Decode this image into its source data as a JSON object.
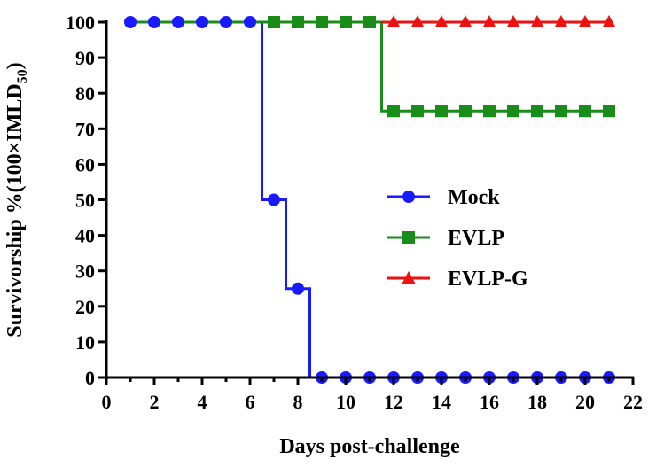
{
  "chart_data": {
    "type": "line",
    "step": true,
    "xlabel": "Days post-challenge",
    "ylabel": "Survivorship %(100×IMLD",
    "ylabel_subscript": "50",
    "ylabel_close": ")",
    "xlim": [
      0,
      22
    ],
    "ylim": [
      0,
      100
    ],
    "x_ticks": [
      0,
      2,
      4,
      6,
      8,
      10,
      12,
      14,
      16,
      18,
      20,
      22
    ],
    "y_ticks": [
      0,
      10,
      20,
      30,
      40,
      50,
      60,
      70,
      80,
      90,
      100
    ],
    "grid": false,
    "legend_position": "right",
    "series": [
      {
        "name": "Mock",
        "color": "#1a1aff",
        "marker": "circle",
        "steps": [
          [
            1,
            100
          ],
          [
            6.5,
            100
          ],
          [
            6.5,
            50
          ],
          [
            7.5,
            50
          ],
          [
            7.5,
            25
          ],
          [
            8.5,
            25
          ],
          [
            8.5,
            0
          ],
          [
            21,
            0
          ]
        ],
        "points": [
          [
            1,
            100
          ],
          [
            2,
            100
          ],
          [
            3,
            100
          ],
          [
            4,
            100
          ],
          [
            5,
            100
          ],
          [
            6,
            100
          ],
          [
            7,
            50
          ],
          [
            8,
            25
          ],
          [
            9,
            0
          ],
          [
            10,
            0
          ],
          [
            11,
            0
          ],
          [
            12,
            0
          ],
          [
            13,
            0
          ],
          [
            14,
            0
          ],
          [
            15,
            0
          ],
          [
            16,
            0
          ],
          [
            17,
            0
          ],
          [
            18,
            0
          ],
          [
            19,
            0
          ],
          [
            20,
            0
          ],
          [
            21,
            0
          ]
        ]
      },
      {
        "name": "EVLP",
        "color": "#1a8c1a",
        "marker": "square",
        "steps": [
          [
            1,
            100
          ],
          [
            11.5,
            100
          ],
          [
            11.5,
            75
          ],
          [
            21,
            75
          ]
        ],
        "points": [
          [
            7,
            100
          ],
          [
            8,
            100
          ],
          [
            9,
            100
          ],
          [
            10,
            100
          ],
          [
            11,
            100
          ],
          [
            12,
            75
          ],
          [
            13,
            75
          ],
          [
            14,
            75
          ],
          [
            15,
            75
          ],
          [
            16,
            75
          ],
          [
            17,
            75
          ],
          [
            18,
            75
          ],
          [
            19,
            75
          ],
          [
            20,
            75
          ],
          [
            21,
            75
          ]
        ]
      },
      {
        "name": "EVLP-G",
        "color": "#ee1111",
        "marker": "triangle",
        "steps": [
          [
            11.5,
            100
          ],
          [
            21,
            100
          ]
        ],
        "points": [
          [
            12,
            100
          ],
          [
            13,
            100
          ],
          [
            14,
            100
          ],
          [
            15,
            100
          ],
          [
            16,
            100
          ],
          [
            17,
            100
          ],
          [
            18,
            100
          ],
          [
            19,
            100
          ],
          [
            20,
            100
          ],
          [
            21,
            100
          ]
        ]
      }
    ]
  }
}
